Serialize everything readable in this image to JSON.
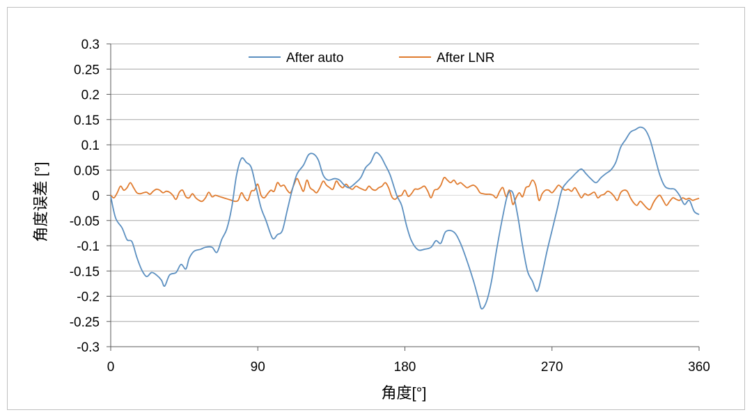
{
  "chart_data": {
    "type": "line",
    "title": "",
    "xlabel": "角度[°]",
    "ylabel": "角度误差 [°]",
    "xlim": [
      0,
      360
    ],
    "ylim": [
      -0.3,
      0.3
    ],
    "x_ticks": [
      "0",
      "90",
      "180",
      "270",
      "360"
    ],
    "y_ticks": [
      "0.3",
      "0.25",
      "0.2",
      "0.15",
      "0.1",
      "0.05",
      "0",
      "-0.05",
      "-0.1",
      "-0.15",
      "-0.2",
      "-0.25",
      "-0.3"
    ],
    "grid": true,
    "legend_position": "top",
    "series": [
      {
        "name": "After  auto",
        "color": "#5b8fc0",
        "points": [
          [
            0,
            -0.002
          ],
          [
            3,
            -0.045
          ],
          [
            7,
            -0.065
          ],
          [
            10,
            -0.088
          ],
          [
            13,
            -0.092
          ],
          [
            16,
            -0.123
          ],
          [
            19,
            -0.148
          ],
          [
            22,
            -0.161
          ],
          [
            25,
            -0.153
          ],
          [
            28,
            -0.158
          ],
          [
            31,
            -0.168
          ],
          [
            33,
            -0.18
          ],
          [
            36,
            -0.158
          ],
          [
            40,
            -0.153
          ],
          [
            43,
            -0.137
          ],
          [
            46,
            -0.146
          ],
          [
            48,
            -0.125
          ],
          [
            51,
            -0.111
          ],
          [
            55,
            -0.107
          ],
          [
            58,
            -0.103
          ],
          [
            62,
            -0.103
          ],
          [
            65,
            -0.113
          ],
          [
            68,
            -0.087
          ],
          [
            71,
            -0.067
          ],
          [
            74,
            -0.025
          ],
          [
            77,
            0.04
          ],
          [
            80,
            0.073
          ],
          [
            83,
            0.065
          ],
          [
            86,
            0.055
          ],
          [
            89,
            0.015
          ],
          [
            92,
            -0.025
          ],
          [
            95,
            -0.05
          ],
          [
            99,
            -0.085
          ],
          [
            102,
            -0.078
          ],
          [
            105,
            -0.07
          ],
          [
            108,
            -0.03
          ],
          [
            111,
            0.01
          ],
          [
            114,
            0.042
          ],
          [
            118,
            0.06
          ],
          [
            121,
            0.08
          ],
          [
            124,
            0.082
          ],
          [
            127,
            0.07
          ],
          [
            130,
            0.04
          ],
          [
            133,
            0.03
          ],
          [
            137,
            0.033
          ],
          [
            140,
            0.03
          ],
          [
            143,
            0.02
          ],
          [
            146,
            0.015
          ],
          [
            150,
            0.025
          ],
          [
            153,
            0.035
          ],
          [
            156,
            0.055
          ],
          [
            159,
            0.065
          ],
          [
            162,
            0.084
          ],
          [
            165,
            0.078
          ],
          [
            168,
            0.06
          ],
          [
            171,
            0.04
          ],
          [
            175,
            0.0
          ],
          [
            178,
            -0.02
          ],
          [
            181,
            -0.06
          ],
          [
            184,
            -0.09
          ],
          [
            188,
            -0.108
          ],
          [
            192,
            -0.107
          ],
          [
            196,
            -0.103
          ],
          [
            199,
            -0.09
          ],
          [
            202,
            -0.095
          ],
          [
            205,
            -0.072
          ],
          [
            210,
            -0.073
          ],
          [
            214,
            -0.095
          ],
          [
            218,
            -0.13
          ],
          [
            222,
            -0.17
          ],
          [
            225,
            -0.205
          ],
          [
            227,
            -0.225
          ],
          [
            230,
            -0.21
          ],
          [
            233,
            -0.17
          ],
          [
            236,
            -0.11
          ],
          [
            240,
            -0.04
          ],
          [
            243,
            0.002
          ],
          [
            246,
            0.005
          ],
          [
            249,
            -0.04
          ],
          [
            252,
            -0.1
          ],
          [
            255,
            -0.15
          ],
          [
            258,
            -0.17
          ],
          [
            261,
            -0.19
          ],
          [
            264,
            -0.155
          ],
          [
            267,
            -0.11
          ],
          [
            270,
            -0.07
          ],
          [
            273,
            -0.03
          ],
          [
            276,
            0.01
          ],
          [
            279,
            0.025
          ],
          [
            282,
            0.035
          ],
          [
            285,
            0.045
          ],
          [
            288,
            0.052
          ],
          [
            291,
            0.042
          ],
          [
            294,
            0.032
          ],
          [
            297,
            0.025
          ],
          [
            300,
            0.035
          ],
          [
            303,
            0.043
          ],
          [
            306,
            0.05
          ],
          [
            309,
            0.065
          ],
          [
            312,
            0.095
          ],
          [
            315,
            0.11
          ],
          [
            318,
            0.125
          ],
          [
            321,
            0.13
          ],
          [
            324,
            0.135
          ],
          [
            327,
            0.13
          ],
          [
            330,
            0.11
          ],
          [
            333,
            0.075
          ],
          [
            336,
            0.04
          ],
          [
            339,
            0.018
          ],
          [
            342,
            0.013
          ],
          [
            345,
            0.012
          ],
          [
            348,
            0.0
          ],
          [
            351,
            -0.018
          ],
          [
            354,
            -0.01
          ],
          [
            357,
            -0.032
          ],
          [
            360,
            -0.038
          ]
        ]
      },
      {
        "name": "After LNR",
        "color": "#e07b2e",
        "points": [
          [
            0,
            0.0
          ],
          [
            2,
            -0.005
          ],
          [
            4,
            0.005
          ],
          [
            6,
            0.018
          ],
          [
            8,
            0.01
          ],
          [
            10,
            0.015
          ],
          [
            12,
            0.025
          ],
          [
            14,
            0.015
          ],
          [
            16,
            0.005
          ],
          [
            18,
            0.003
          ],
          [
            20,
            0.005
          ],
          [
            22,
            0.006
          ],
          [
            24,
            0.002
          ],
          [
            26,
            0.008
          ],
          [
            28,
            0.012
          ],
          [
            30,
            0.01
          ],
          [
            32,
            0.005
          ],
          [
            34,
            0.008
          ],
          [
            36,
            0.006
          ],
          [
            38,
            0.0
          ],
          [
            40,
            -0.008
          ],
          [
            42,
            0.006
          ],
          [
            44,
            0.01
          ],
          [
            46,
            -0.003
          ],
          [
            48,
            -0.005
          ],
          [
            50,
            0.003
          ],
          [
            52,
            -0.005
          ],
          [
            54,
            -0.01
          ],
          [
            56,
            -0.012
          ],
          [
            58,
            -0.005
          ],
          [
            60,
            0.006
          ],
          [
            62,
            -0.003
          ],
          [
            64,
            0.0
          ],
          [
            66,
            -0.002
          ],
          [
            68,
            -0.004
          ],
          [
            70,
            -0.006
          ],
          [
            72,
            -0.008
          ],
          [
            74,
            -0.01
          ],
          [
            76,
            -0.012
          ],
          [
            78,
            -0.01
          ],
          [
            80,
            0.005
          ],
          [
            82,
            -0.005
          ],
          [
            84,
            -0.01
          ],
          [
            86,
            0.008
          ],
          [
            88,
            0.01
          ],
          [
            90,
            0.022
          ],
          [
            92,
            0.0
          ],
          [
            94,
            -0.005
          ],
          [
            96,
            0.003
          ],
          [
            98,
            0.01
          ],
          [
            100,
            0.008
          ],
          [
            102,
            0.025
          ],
          [
            104,
            0.018
          ],
          [
            106,
            0.02
          ],
          [
            108,
            0.01
          ],
          [
            110,
            0.005
          ],
          [
            112,
            0.02
          ],
          [
            114,
            0.033
          ],
          [
            116,
            0.02
          ],
          [
            118,
            0.008
          ],
          [
            120,
            0.03
          ],
          [
            122,
            0.015
          ],
          [
            124,
            0.01
          ],
          [
            126,
            0.005
          ],
          [
            128,
            0.015
          ],
          [
            130,
            0.028
          ],
          [
            132,
            0.02
          ],
          [
            134,
            0.015
          ],
          [
            136,
            0.012
          ],
          [
            138,
            0.028
          ],
          [
            140,
            0.02
          ],
          [
            142,
            0.015
          ],
          [
            144,
            0.022
          ],
          [
            146,
            0.015
          ],
          [
            148,
            0.012
          ],
          [
            150,
            0.018
          ],
          [
            152,
            0.015
          ],
          [
            154,
            0.012
          ],
          [
            156,
            0.01
          ],
          [
            158,
            0.018
          ],
          [
            160,
            0.012
          ],
          [
            162,
            0.01
          ],
          [
            164,
            0.015
          ],
          [
            166,
            0.018
          ],
          [
            168,
            0.025
          ],
          [
            170,
            0.015
          ],
          [
            172,
            -0.003
          ],
          [
            174,
            -0.008
          ],
          [
            176,
            -0.002
          ],
          [
            178,
            0.0
          ],
          [
            180,
            0.01
          ],
          [
            182,
            -0.002
          ],
          [
            184,
            0.003
          ],
          [
            186,
            0.012
          ],
          [
            188,
            0.012
          ],
          [
            190,
            0.015
          ],
          [
            192,
            0.018
          ],
          [
            194,
            0.008
          ],
          [
            196,
            -0.005
          ],
          [
            198,
            0.01
          ],
          [
            200,
            0.012
          ],
          [
            202,
            0.02
          ],
          [
            204,
            0.035
          ],
          [
            206,
            0.03
          ],
          [
            208,
            0.025
          ],
          [
            210,
            0.03
          ],
          [
            212,
            0.022
          ],
          [
            214,
            0.025
          ],
          [
            216,
            0.02
          ],
          [
            218,
            0.015
          ],
          [
            220,
            0.018
          ],
          [
            222,
            0.02
          ],
          [
            224,
            0.015
          ],
          [
            226,
            0.005
          ],
          [
            228,
            0.003
          ],
          [
            230,
            0.002
          ],
          [
            232,
            0.002
          ],
          [
            234,
            0.0
          ],
          [
            236,
            -0.005
          ],
          [
            238,
            0.008
          ],
          [
            240,
            0.015
          ],
          [
            242,
            -0.003
          ],
          [
            244,
            0.01
          ],
          [
            246,
            -0.018
          ],
          [
            248,
            -0.005
          ],
          [
            250,
            0.005
          ],
          [
            252,
            -0.003
          ],
          [
            254,
            0.015
          ],
          [
            256,
            0.018
          ],
          [
            258,
            0.03
          ],
          [
            260,
            0.02
          ],
          [
            262,
            -0.01
          ],
          [
            264,
            0.003
          ],
          [
            266,
            0.01
          ],
          [
            268,
            0.01
          ],
          [
            270,
            0.005
          ],
          [
            272,
            0.012
          ],
          [
            274,
            0.02
          ],
          [
            276,
            0.015
          ],
          [
            278,
            0.01
          ],
          [
            280,
            0.012
          ],
          [
            282,
            0.008
          ],
          [
            284,
            0.015
          ],
          [
            286,
            0.005
          ],
          [
            288,
            -0.005
          ],
          [
            290,
            0.003
          ],
          [
            292,
            0.0
          ],
          [
            294,
            0.003
          ],
          [
            296,
            0.006
          ],
          [
            298,
            -0.005
          ],
          [
            300,
            0.0
          ],
          [
            302,
            0.002
          ],
          [
            304,
            0.008
          ],
          [
            306,
            0.005
          ],
          [
            308,
            -0.002
          ],
          [
            310,
            -0.01
          ],
          [
            312,
            0.005
          ],
          [
            314,
            0.01
          ],
          [
            316,
            0.008
          ],
          [
            318,
            -0.005
          ],
          [
            320,
            -0.015
          ],
          [
            322,
            -0.02
          ],
          [
            324,
            -0.012
          ],
          [
            326,
            -0.018
          ],
          [
            328,
            -0.025
          ],
          [
            330,
            -0.028
          ],
          [
            332,
            -0.015
          ],
          [
            334,
            -0.005
          ],
          [
            336,
            0.0
          ],
          [
            338,
            -0.01
          ],
          [
            340,
            -0.02
          ],
          [
            342,
            -0.012
          ],
          [
            344,
            -0.005
          ],
          [
            346,
            -0.008
          ],
          [
            348,
            -0.01
          ],
          [
            350,
            -0.005
          ],
          [
            352,
            -0.008
          ],
          [
            354,
            -0.006
          ],
          [
            356,
            -0.01
          ],
          [
            358,
            -0.008
          ],
          [
            360,
            -0.006
          ]
        ]
      }
    ]
  }
}
